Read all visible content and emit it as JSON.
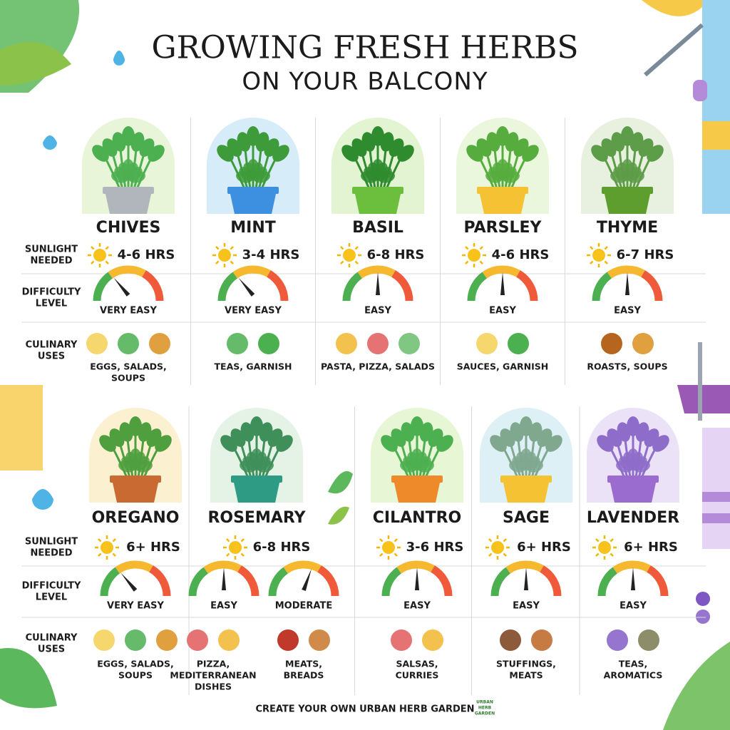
{
  "header": {
    "title": "GROWING FRESH HERBS",
    "subtitle": "ON YOUR BALCONY"
  },
  "row_labels": {
    "sunlight": [
      "SUNLIGHT",
      "NEEDED"
    ],
    "difficulty": [
      "DIFFICULTY",
      "LEVEL"
    ],
    "uses": [
      "CULINARY",
      "USES"
    ]
  },
  "sections": [
    {
      "herbs": [
        {
          "name": "CHIVES",
          "sunlight": "4-6 HRS",
          "difficulty": [
            "VERY EASY"
          ],
          "uses": [
            [
              "EGGS, SALADS,",
              "SOUPS"
            ]
          ]
        },
        {
          "name": "MINT",
          "sunlight": "3-4 HRS",
          "difficulty": [
            "VERY EASY"
          ],
          "uses": [
            [
              "TEAS, GARNISH"
            ]
          ]
        },
        {
          "name": "BASIL",
          "sunlight": "6-8 HRS",
          "difficulty": [
            "EASY"
          ],
          "uses": [
            [
              "PASTA, PIZZA, SALADS"
            ]
          ]
        },
        {
          "name": "PARSLEY",
          "sunlight": "4-6 HRS",
          "difficulty": [
            "EASY"
          ],
          "uses": [
            [
              "SAUCES, GARNISH"
            ]
          ]
        },
        {
          "name": "THYME",
          "sunlight": "6-7 HRS",
          "difficulty": [
            "EASY"
          ],
          "uses": [
            [
              "ROASTS, SOUPS"
            ]
          ]
        }
      ]
    },
    {
      "herbs": [
        {
          "name": "OREGANO",
          "sunlight": "6+ HRS",
          "difficulty": [
            "VERY EASY"
          ],
          "uses": [
            [
              "EGGS, SALADS,",
              "SOUPS"
            ]
          ]
        },
        {
          "name": "ROSEMARY",
          "sunlight": "6-8 HRS",
          "difficulty": [
            "EASY",
            "MODERATE"
          ],
          "uses": [
            [
              "PIZZA,",
              "MEDITERRANEAN",
              "DISHES"
            ],
            [
              "MEATS,",
              "BREADS"
            ]
          ]
        },
        {
          "name": "CILANTRO",
          "sunlight": "3-6 HRS",
          "difficulty": [
            "EASY"
          ],
          "uses": [
            [
              "SALSAS,",
              "CURRIES"
            ]
          ]
        },
        {
          "name": "SAGE",
          "sunlight": "6+ HRS",
          "difficulty": [
            "EASY"
          ],
          "uses": [
            [
              "STUFFINGS,",
              "MEATS"
            ]
          ]
        },
        {
          "name": "LAVENDER",
          "sunlight": "6+ HRS",
          "difficulty": [
            "EASY"
          ],
          "uses": [
            [
              "TEAS,",
              "AROMATICS"
            ]
          ]
        }
      ]
    }
  ],
  "footer": {
    "text": "CREATE YOUR OWN URBAN HERB GARDEN",
    "logo": [
      "URBAN",
      "HERB",
      "GARDEN"
    ]
  }
}
